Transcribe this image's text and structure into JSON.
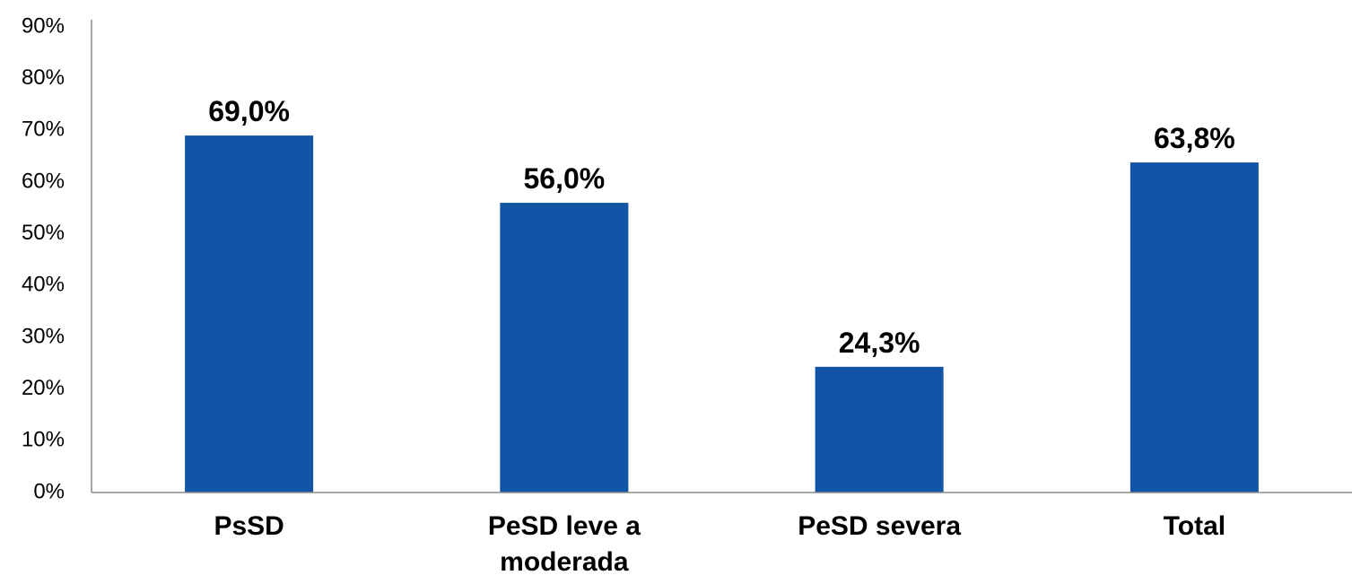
{
  "chart_data": {
    "type": "bar",
    "categories": [
      "PsSD",
      "PeSD leve a moderada",
      "PeSD severa",
      "Total"
    ],
    "category_lines": [
      [
        "PsSD"
      ],
      [
        "PeSD leve a",
        "moderada"
      ],
      [
        "PeSD severa"
      ],
      [
        "Total"
      ]
    ],
    "values": [
      69.0,
      56.0,
      24.3,
      63.8
    ],
    "data_labels": [
      "69,0%",
      "56,0%",
      "24,3%",
      "63,8%"
    ],
    "ylim": [
      0,
      90
    ],
    "yticks": [
      0,
      10,
      20,
      30,
      40,
      50,
      60,
      70,
      80,
      90
    ],
    "ytick_labels": [
      "0%",
      "10%",
      "20%",
      "30%",
      "40%",
      "50%",
      "60%",
      "70%",
      "80%",
      "90%"
    ],
    "title": "",
    "xlabel": "",
    "ylabel": "",
    "grid": false,
    "bar_color": "#1254A5",
    "axis_color": "#8C8C8C"
  }
}
